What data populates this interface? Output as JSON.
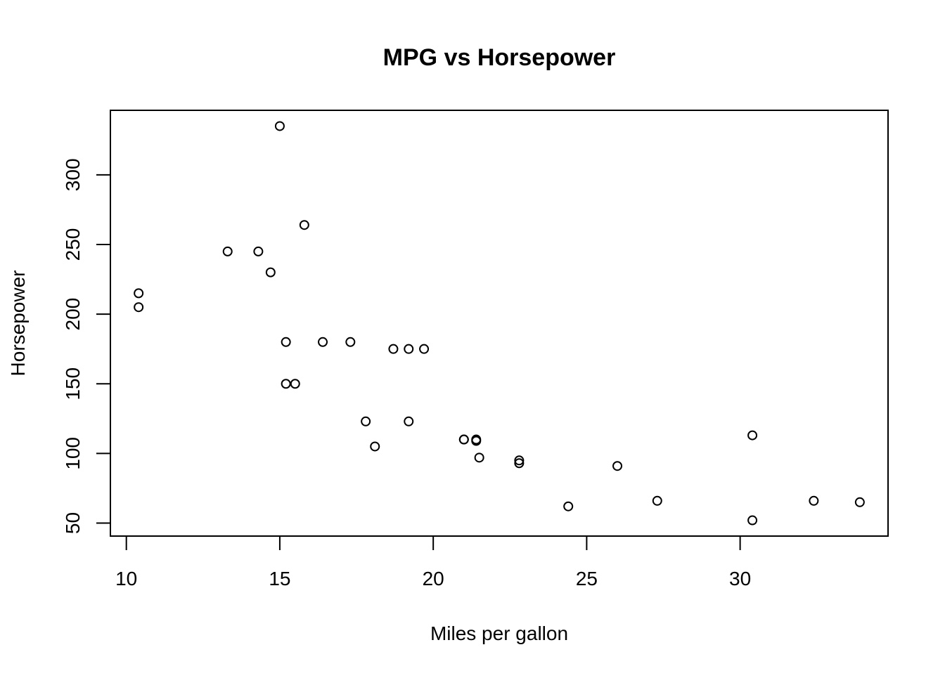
{
  "chart_data": {
    "type": "scatter",
    "title": "MPG vs Horsepower",
    "xlabel": "Miles per gallon",
    "ylabel": "Horsepower",
    "xlim": [
      9.48,
      34.82
    ],
    "ylim": [
      40.68,
      346.32
    ],
    "x_ticks": [
      10,
      15,
      20,
      25,
      30
    ],
    "y_ticks": [
      50,
      100,
      150,
      200,
      250,
      300
    ],
    "grid": false,
    "legend": "none",
    "marker": "open-circle",
    "color": "#000000",
    "points": [
      {
        "x": 21.0,
        "y": 110
      },
      {
        "x": 21.0,
        "y": 110
      },
      {
        "x": 22.8,
        "y": 93
      },
      {
        "x": 21.4,
        "y": 110
      },
      {
        "x": 18.7,
        "y": 175
      },
      {
        "x": 18.1,
        "y": 105
      },
      {
        "x": 14.3,
        "y": 245
      },
      {
        "x": 24.4,
        "y": 62
      },
      {
        "x": 22.8,
        "y": 95
      },
      {
        "x": 19.2,
        "y": 123
      },
      {
        "x": 17.8,
        "y": 123
      },
      {
        "x": 16.4,
        "y": 180
      },
      {
        "x": 17.3,
        "y": 180
      },
      {
        "x": 15.2,
        "y": 180
      },
      {
        "x": 10.4,
        "y": 205
      },
      {
        "x": 10.4,
        "y": 215
      },
      {
        "x": 14.7,
        "y": 230
      },
      {
        "x": 32.4,
        "y": 66
      },
      {
        "x": 30.4,
        "y": 52
      },
      {
        "x": 33.9,
        "y": 65
      },
      {
        "x": 21.5,
        "y": 97
      },
      {
        "x": 15.5,
        "y": 150
      },
      {
        "x": 15.2,
        "y": 150
      },
      {
        "x": 13.3,
        "y": 245
      },
      {
        "x": 19.2,
        "y": 175
      },
      {
        "x": 27.3,
        "y": 66
      },
      {
        "x": 26.0,
        "y": 91
      },
      {
        "x": 30.4,
        "y": 113
      },
      {
        "x": 15.8,
        "y": 264
      },
      {
        "x": 19.7,
        "y": 175
      },
      {
        "x": 15.0,
        "y": 335
      },
      {
        "x": 21.4,
        "y": 109
      }
    ]
  }
}
